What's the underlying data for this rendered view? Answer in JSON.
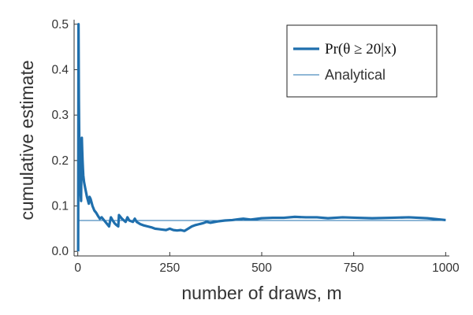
{
  "chart_data": {
    "type": "line",
    "xlabel": "number of draws, m",
    "ylabel": "cumulative estimate",
    "xlim": [
      -10,
      1010
    ],
    "ylim": [
      -0.01,
      0.51
    ],
    "x_ticks": [
      0,
      250,
      500,
      750,
      1000
    ],
    "x_tick_labels": [
      "0",
      "250",
      "500",
      "750",
      "1000"
    ],
    "y_ticks": [
      0.0,
      0.1,
      0.2,
      0.3,
      0.4,
      0.5
    ],
    "y_tick_labels": [
      "0.0",
      "0.1",
      "0.2",
      "0.3",
      "0.4",
      "0.5"
    ],
    "grid": false,
    "legend_position": "top-right",
    "colors": {
      "series": "#1f6fad",
      "axis": "#333333"
    },
    "series": [
      {
        "name": "Pr(θ ≥ 20|x)",
        "style": "thick",
        "x": [
          1,
          2,
          3,
          4,
          5,
          6,
          7,
          8,
          9,
          10,
          11,
          12,
          13,
          14,
          15,
          17,
          20,
          25,
          30,
          32,
          35,
          40,
          45,
          50,
          55,
          60,
          65,
          70,
          75,
          80,
          85,
          90,
          95,
          100,
          105,
          110,
          112,
          120,
          130,
          135,
          140,
          150,
          155,
          160,
          170,
          180,
          190,
          200,
          210,
          220,
          230,
          240,
          250,
          260,
          270,
          280,
          290,
          300,
          310,
          320,
          330,
          340,
          350,
          360,
          380,
          400,
          420,
          440,
          450,
          470,
          500,
          530,
          560,
          590,
          620,
          650,
          680,
          720,
          760,
          800,
          850,
          900,
          950,
          1000
        ],
        "y": [
          0.0,
          0.5,
          0.333,
          0.25,
          0.2,
          0.167,
          0.143,
          0.125,
          0.111,
          0.2,
          0.25,
          0.222,
          0.2,
          0.182,
          0.167,
          0.153,
          0.14,
          0.12,
          0.105,
          0.12,
          0.115,
          0.1,
          0.09,
          0.085,
          0.078,
          0.072,
          0.075,
          0.07,
          0.065,
          0.06,
          0.055,
          0.075,
          0.068,
          0.062,
          0.058,
          0.055,
          0.08,
          0.072,
          0.065,
          0.075,
          0.068,
          0.065,
          0.072,
          0.065,
          0.06,
          0.057,
          0.055,
          0.053,
          0.05,
          0.049,
          0.048,
          0.047,
          0.05,
          0.047,
          0.046,
          0.047,
          0.045,
          0.05,
          0.055,
          0.058,
          0.06,
          0.062,
          0.065,
          0.063,
          0.066,
          0.068,
          0.069,
          0.071,
          0.072,
          0.07,
          0.073,
          0.074,
          0.074,
          0.076,
          0.075,
          0.075,
          0.073,
          0.075,
          0.074,
          0.073,
          0.074,
          0.075,
          0.073,
          0.069
        ]
      },
      {
        "name": "Analytical",
        "style": "thin",
        "x": [
          0,
          1000
        ],
        "y": [
          0.068,
          0.068
        ]
      }
    ]
  }
}
